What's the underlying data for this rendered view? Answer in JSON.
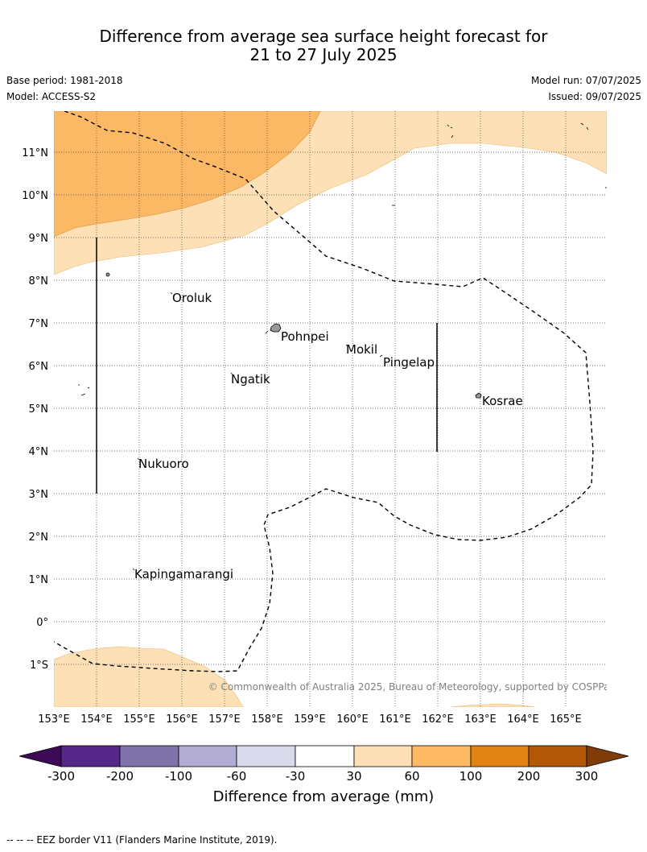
{
  "header": {
    "title_line1": "Difference from average sea surface height forecast for",
    "title_line2": "21 to 27 July 2025",
    "base_period": "Base period: 1981-2018",
    "model": "Model: ACCESS-S2",
    "model_run": "Model run: 07/07/2025",
    "issued": "Issued: 09/07/2025"
  },
  "map": {
    "lat_labels": [
      "11°N",
      "10°N",
      "9°N",
      "8°N",
      "7°N",
      "6°N",
      "5°N",
      "4°N",
      "3°N",
      "2°N",
      "1°N",
      "0°",
      "1°S"
    ],
    "lon_labels": [
      "153°E",
      "154°E",
      "155°E",
      "156°E",
      "157°E",
      "158°E",
      "159°E",
      "160°E",
      "161°E",
      "162°E",
      "163°E",
      "164°E",
      "165°E"
    ],
    "places": [
      "Oroluk",
      "Pohnpei",
      "Mokil",
      "Pingelap",
      "Ngatik",
      "Kosrae",
      "Nukuoro",
      "Kapingamarangi"
    ],
    "copyright": "© Commonwealth of Australia 2025, Bureau of Meteorology, supported by COSPPac",
    "colors": {
      "30_60": "#fde0b6",
      "60_100": "#fbb865",
      "land": "#999999",
      "eez": "#000000"
    }
  },
  "colorbar": {
    "ticks": [
      "-300",
      "-200",
      "-100",
      "-60",
      "-30",
      "30",
      "60",
      "100",
      "200",
      "300"
    ],
    "colors": [
      "#3d0a55",
      "#542788",
      "#8073ac",
      "#b2abd2",
      "#d8daeb",
      "#ffffff",
      "#fee0b6",
      "#fdb863",
      "#e08214",
      "#b35806",
      "#7f3b08"
    ],
    "label": "Difference from average (mm)"
  },
  "footer": {
    "legend_text": "--  --  -- EEZ border V11 (Flanders Marine Institute, 2019)."
  }
}
